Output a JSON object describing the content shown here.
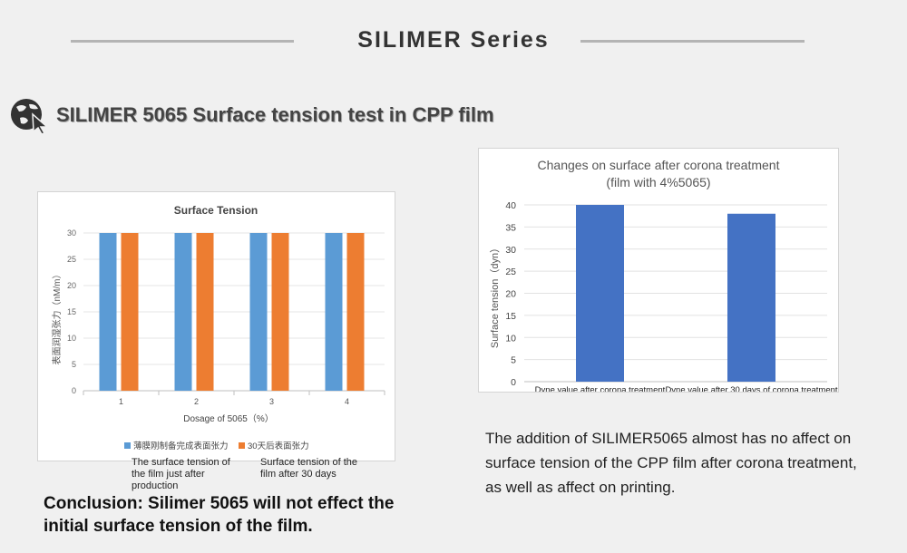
{
  "header": {
    "title": "SILIMER Series"
  },
  "section": {
    "title": "SILIMER 5065 Surface tension test in CPP film",
    "icon": "globe-cursor-icon"
  },
  "chart_data": [
    {
      "type": "bar",
      "title": "Surface Tension",
      "xlabel": "Dosage of 5065（%）",
      "ylabel": "表面润湿张力（nM/m）",
      "categories": [
        "1",
        "2",
        "3",
        "4"
      ],
      "ylim": [
        0,
        30
      ],
      "yticks": [
        "0",
        "5",
        "10",
        "15",
        "20",
        "25",
        "30"
      ],
      "series": [
        {
          "name": "薄膜刚制备完成表面张力",
          "color": "#5b9bd5",
          "values": [
            30,
            30,
            30,
            30
          ]
        },
        {
          "name": "30天后表面张力",
          "color": "#ed7d31",
          "values": [
            30,
            30,
            30,
            30
          ]
        }
      ],
      "legend": "bottom",
      "grid": true
    },
    {
      "type": "bar",
      "title": "Changes on surface  after corona treatment",
      "subtitle": "(film with 4%5065)",
      "ylabel": "Surface tension（dyn）",
      "categories": [
        "Dyne value after corona treatment",
        "Dyne value  after 30 days of corona treatment"
      ],
      "ylim": [
        0,
        40
      ],
      "yticks": [
        "0",
        "5",
        "10",
        "15",
        "20",
        "25",
        "30",
        "35",
        "40"
      ],
      "series": [
        {
          "name": "Surface tension",
          "color": "#4472c4",
          "values": [
            40,
            38
          ]
        }
      ],
      "grid": true
    }
  ],
  "notes": {
    "left": "The surface tension of the film just after production",
    "right": "Surface tension of the film after 30 days"
  },
  "conclusion": "Conclusion: Silimer 5065 will not effect the initial surface tension of the film.",
  "description": "The addition of SILIMER5065 almost has no affect on surface tension of the CPP film after corona treatment, as well as affect on printing."
}
